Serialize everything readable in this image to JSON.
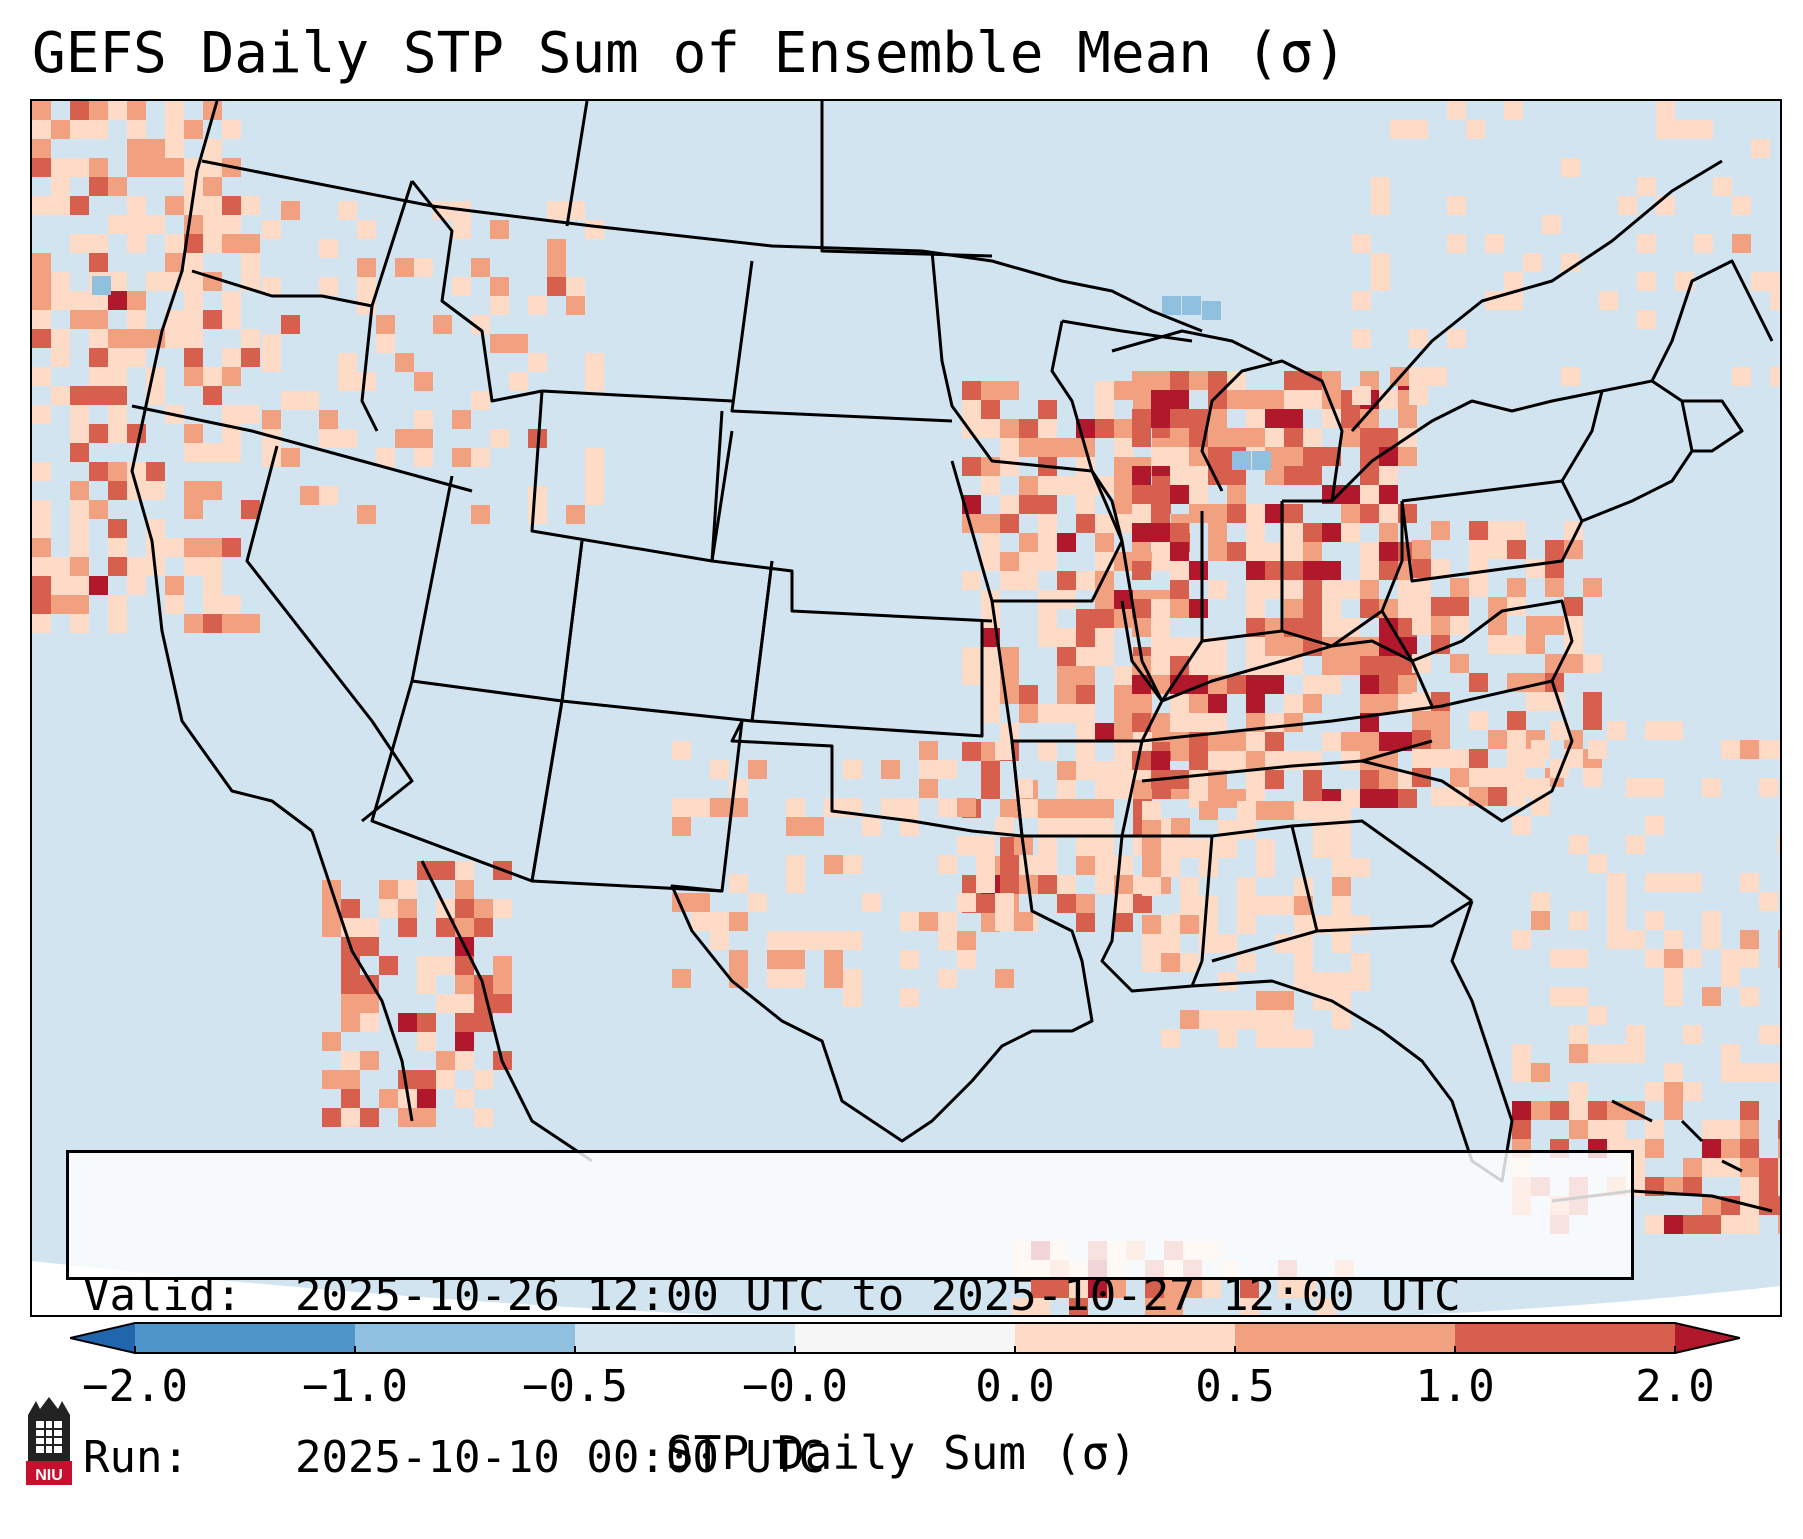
{
  "title": "GEFS Daily STP Sum of Ensemble Mean (σ)",
  "info": {
    "valid_label": "Valid:",
    "valid_value": "2025-10-26 12:00 UTC to 2025-10-27 12:00 UTC",
    "run_label": "Run:",
    "run_value": "2025-10-10 00:00 UTC"
  },
  "colorbar": {
    "label": "STP Daily Sum (σ)",
    "ticks": [
      "−2.0",
      "−1.0",
      "−0.5",
      "−0.0",
      "0.0",
      "0.5",
      "1.0",
      "2.0"
    ],
    "colors": [
      "#2b6fb4",
      "#4f95c9",
      "#8fc0e0",
      "#d1e4f0",
      "#f6f6f6",
      "#fddbc7",
      "#f1a080",
      "#d6604d",
      "#b2182b"
    ],
    "under_color": "#2166ac",
    "over_color": "#b2182b"
  },
  "map": {
    "background_color": "#d1e4f0",
    "outline_color": "#000000"
  },
  "logo": {
    "text": "NIU"
  }
}
